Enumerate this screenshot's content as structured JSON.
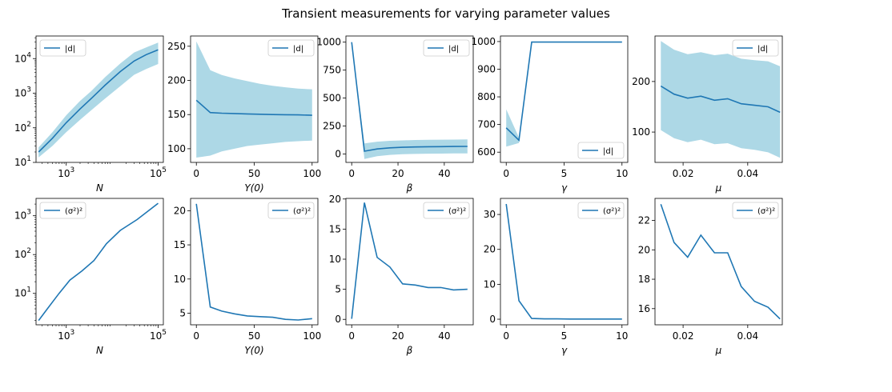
{
  "title": "Transient measurements for varying parameter values",
  "colors": {
    "line": "#1f77b4",
    "band": "#add8e6"
  },
  "chart_data": [
    {
      "type": "line",
      "xlabel": "N",
      "xscale": "log",
      "yscale": "log",
      "xlim": [
        220,
        130000
      ],
      "ylim": [
        10,
        45000
      ],
      "xticks": [
        1000,
        100000
      ],
      "xticklabels": [
        "10^3",
        "10^5"
      ],
      "yticks": [
        10,
        100,
        1000,
        10000
      ],
      "yticklabels": [
        "10^1",
        "10^2",
        "10^3",
        "10^4"
      ],
      "legend": "upper left",
      "series": [
        {
          "name": "|d|",
          "x": [
            250,
            500,
            1000,
            2000,
            3500,
            7000,
            15000,
            30000,
            55000,
            100000
          ],
          "values": [
            20,
            50,
            140,
            350,
            700,
            1700,
            4200,
            8500,
            13000,
            18000
          ],
          "lower": [
            14,
            30,
            75,
            170,
            320,
            700,
            1600,
            3400,
            5000,
            7000
          ],
          "upper": [
            27,
            75,
            230,
            600,
            1150,
            2900,
            7200,
            15000,
            21000,
            29000
          ]
        }
      ]
    },
    {
      "type": "line",
      "xlabel": "Y(0)",
      "xlim": [
        -5,
        105
      ],
      "ylim": [
        80,
        265
      ],
      "xticks": [
        0,
        50,
        100
      ],
      "xticklabels": [
        "0",
        "50",
        "100"
      ],
      "yticks": [
        100,
        150,
        200,
        250
      ],
      "yticklabels": [
        "100",
        "150",
        "200",
        "250"
      ],
      "legend": "upper right",
      "series": [
        {
          "name": "|d|",
          "x": [
            0,
            12,
            22,
            33,
            44,
            55,
            66,
            77,
            88,
            100
          ],
          "values": [
            171,
            153,
            152,
            151.5,
            151,
            150.5,
            150,
            149.8,
            149.5,
            149
          ],
          "lower": [
            87,
            90,
            96,
            100,
            104,
            106,
            108,
            110,
            111,
            112
          ],
          "upper": [
            257,
            215,
            208,
            203,
            199,
            195,
            192,
            190,
            188,
            187
          ]
        }
      ]
    },
    {
      "type": "line",
      "xlabel": "β",
      "xlim": [
        -2.5,
        52.5
      ],
      "ylim": [
        -75,
        1055
      ],
      "xticks": [
        0,
        20,
        40
      ],
      "xticklabels": [
        "0",
        "20",
        "40"
      ],
      "yticks": [
        0,
        250,
        500,
        750,
        1000
      ],
      "yticklabels": [
        "0",
        "250",
        "500",
        "750",
        "1000"
      ],
      "legend": "upper right",
      "series": [
        {
          "name": "|d|",
          "x": [
            0,
            5.5,
            11,
            16.5,
            22,
            27.5,
            33,
            38.5,
            44,
            50
          ],
          "values": [
            1000,
            25,
            45,
            55,
            60,
            63,
            65,
            66,
            67,
            68
          ],
          "lower": [
            1000,
            -45,
            -20,
            -8,
            -2,
            1,
            3,
            4,
            5,
            5
          ],
          "upper": [
            1000,
            95,
            110,
            118,
            122,
            125,
            127,
            128,
            129,
            130
          ]
        }
      ]
    },
    {
      "type": "line",
      "xlabel": "γ",
      "xlim": [
        -0.5,
        10.5
      ],
      "ylim": [
        563,
        1020
      ],
      "xticks": [
        0,
        5,
        10
      ],
      "xticklabels": [
        "0",
        "5",
        "10"
      ],
      "yticks": [
        600,
        700,
        800,
        900,
        1000
      ],
      "yticklabels": [
        "600",
        "700",
        "800",
        "900",
        "1000"
      ],
      "legend": "lower right",
      "series": [
        {
          "name": "|d|",
          "x": [
            0,
            1.1,
            2.2,
            3.3,
            4.4,
            5.5,
            6.6,
            7.7,
            8.8,
            10
          ],
          "values": [
            688,
            643,
            998,
            998,
            998,
            998,
            998,
            998,
            998,
            998
          ],
          "lower": [
            620,
            633,
            997,
            997,
            997,
            997,
            997,
            997,
            997,
            997
          ],
          "upper": [
            755,
            653,
            999,
            999,
            999,
            999,
            999,
            999,
            999,
            999
          ]
        }
      ]
    },
    {
      "type": "line",
      "xlabel": "μ",
      "xlim": [
        0.0113,
        0.0507
      ],
      "ylim": [
        40,
        290
      ],
      "xticks": [
        0.02,
        0.04
      ],
      "xticklabels": [
        "0.02",
        "0.04"
      ],
      "yticks": [
        100,
        200
      ],
      "yticklabels": [
        "100",
        "200"
      ],
      "legend": "upper right",
      "series": [
        {
          "name": "|d|",
          "x": [
            0.0131,
            0.0172,
            0.0214,
            0.0255,
            0.0297,
            0.0338,
            0.038,
            0.0421,
            0.0463,
            0.05
          ],
          "values": [
            191,
            175,
            167,
            171,
            163,
            166,
            156,
            153,
            150,
            139
          ],
          "lower": [
            104,
            88,
            80,
            85,
            76,
            78,
            68,
            65,
            60,
            49
          ],
          "upper": [
            280,
            263,
            254,
            258,
            252,
            255,
            245,
            242,
            240,
            230
          ]
        }
      ]
    },
    {
      "type": "line",
      "xlabel": "N",
      "xscale": "log",
      "yscale": "log",
      "xlim": [
        220,
        130000
      ],
      "ylim": [
        1.55,
        2800
      ],
      "xticks": [
        1000,
        100000
      ],
      "xticklabels": [
        "10^3",
        "10^5"
      ],
      "yticks": [
        10,
        100,
        1000
      ],
      "yticklabels": [
        "10^1",
        "10^2",
        "10^3"
      ],
      "legend": "upper left",
      "series": [
        {
          "name": "(σ²)²",
          "x": [
            250,
            400,
            700,
            1200,
            2200,
            4000,
            7500,
            15000,
            35000,
            100000
          ],
          "values": [
            2,
            4.2,
            10,
            22,
            38,
            70,
            190,
            420,
            800,
            2100
          ]
        }
      ]
    },
    {
      "type": "line",
      "xlabel": "Y(0)",
      "xlim": [
        -5,
        105
      ],
      "ylim": [
        3.3,
        21.8
      ],
      "xticks": [
        0,
        50,
        100
      ],
      "xticklabels": [
        "0",
        "50",
        "100"
      ],
      "yticks": [
        5,
        10,
        15,
        20
      ],
      "yticklabels": [
        "5",
        "10",
        "15",
        "20"
      ],
      "legend": "upper right",
      "series": [
        {
          "name": "(σ²)²",
          "x": [
            0,
            12,
            22,
            33,
            44,
            55,
            66,
            77,
            88,
            100
          ],
          "values": [
            21,
            5.9,
            5.3,
            4.9,
            4.6,
            4.5,
            4.4,
            4.1,
            4.0,
            4.2
          ]
        }
      ]
    },
    {
      "type": "line",
      "xlabel": "β",
      "xlim": [
        -2.5,
        52.5
      ],
      "ylim": [
        -0.9,
        20.1
      ],
      "xticks": [
        0,
        20,
        40
      ],
      "xticklabels": [
        "0",
        "20",
        "40"
      ],
      "yticks": [
        0,
        5,
        10,
        15,
        20
      ],
      "yticklabels": [
        "0",
        "5",
        "10",
        "15",
        "20"
      ],
      "legend": "upper right",
      "series": [
        {
          "name": "(σ²)²",
          "x": [
            0,
            5.5,
            11,
            16.5,
            22,
            27.5,
            33,
            38.5,
            44,
            50
          ],
          "values": [
            0.1,
            19.4,
            10.3,
            8.7,
            5.9,
            5.7,
            5.3,
            5.3,
            4.9,
            5.0
          ]
        }
      ]
    },
    {
      "type": "line",
      "xlabel": "γ",
      "xlim": [
        -0.5,
        10.5
      ],
      "ylim": [
        -1.6,
        34.6
      ],
      "xticks": [
        0,
        5,
        10
      ],
      "xticklabels": [
        "0",
        "5",
        "10"
      ],
      "yticks": [
        0,
        10,
        20,
        30
      ],
      "yticklabels": [
        "0",
        "10",
        "20",
        "30"
      ],
      "legend": "upper right",
      "series": [
        {
          "name": "(σ²)²",
          "x": [
            0,
            1.1,
            2.2,
            3.3,
            4.4,
            5.5,
            6.6,
            7.7,
            8.8,
            10
          ],
          "values": [
            33,
            5.3,
            0.2,
            0.1,
            0.1,
            0.05,
            0.05,
            0.05,
            0.05,
            0.05
          ]
        }
      ]
    },
    {
      "type": "line",
      "xlabel": "μ",
      "xlim": [
        0.0113,
        0.0507
      ],
      "ylim": [
        14.9,
        23.5
      ],
      "xticks": [
        0.02,
        0.04
      ],
      "xticklabels": [
        "0.02",
        "0.04"
      ],
      "yticks": [
        16,
        18,
        20,
        22
      ],
      "yticklabels": [
        "16",
        "18",
        "20",
        "22"
      ],
      "legend": "upper right",
      "series": [
        {
          "name": "(σ²)²",
          "x": [
            0.0131,
            0.0172,
            0.0214,
            0.0255,
            0.0297,
            0.0338,
            0.038,
            0.0421,
            0.0463,
            0.05
          ],
          "values": [
            23.1,
            20.5,
            19.5,
            21.0,
            19.8,
            19.8,
            17.5,
            16.5,
            16.1,
            15.3
          ]
        }
      ]
    }
  ]
}
